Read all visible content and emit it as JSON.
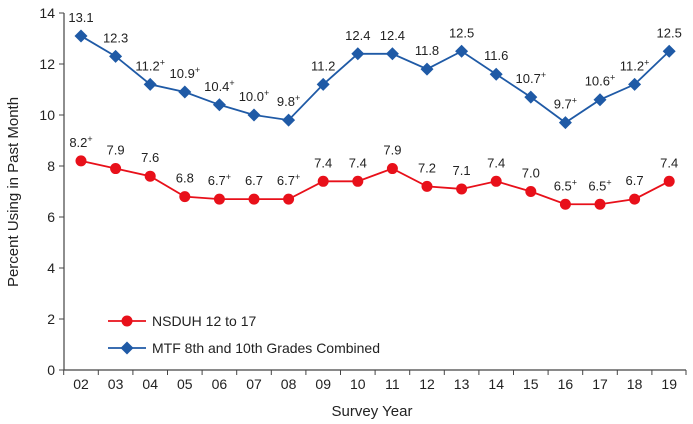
{
  "chart_data": {
    "type": "line",
    "title": "",
    "xlabel": "Survey Year",
    "ylabel": "Percent Using in Past Month",
    "ylim": [
      0,
      14
    ],
    "yticks": [
      0,
      2,
      4,
      6,
      8,
      10,
      12,
      14
    ],
    "grid": false,
    "legend_placement": "bottom-left",
    "categories": [
      "02",
      "03",
      "04",
      "05",
      "06",
      "07",
      "08",
      "09",
      "10",
      "11",
      "12",
      "13",
      "14",
      "15",
      "16",
      "17",
      "18",
      "19"
    ],
    "series": [
      {
        "name": "NSDUH 12 to 17",
        "color": "#e8101a",
        "marker": "circle",
        "values": [
          8.2,
          7.9,
          7.6,
          6.8,
          6.7,
          6.7,
          6.7,
          7.4,
          7.4,
          7.9,
          7.2,
          7.1,
          7.4,
          7.0,
          6.5,
          6.5,
          6.7,
          7.4
        ],
        "labels": [
          "8.2",
          "7.9",
          "7.6",
          "6.8",
          "6.7",
          "6.7",
          "6.7",
          "7.4",
          "7.4",
          "7.9",
          "7.2",
          "7.1",
          "7.4",
          "7.0",
          "6.5",
          "6.5",
          "6.7",
          "7.4"
        ],
        "significant": [
          true,
          false,
          false,
          false,
          true,
          false,
          true,
          false,
          false,
          false,
          false,
          false,
          false,
          false,
          true,
          true,
          false,
          false
        ]
      },
      {
        "name": "MTF 8th and 10th Grades Combined",
        "color": "#1f5aa6",
        "marker": "diamond",
        "values": [
          13.1,
          12.3,
          11.2,
          10.9,
          10.4,
          10.0,
          9.8,
          11.2,
          12.4,
          12.4,
          11.8,
          12.5,
          11.6,
          10.7,
          9.7,
          10.6,
          11.2,
          12.5
        ],
        "labels": [
          "13.1",
          "12.3",
          "11.2",
          "10.9",
          "10.4",
          "10.0",
          "9.8",
          "11.2",
          "12.4",
          "12.4",
          "11.8",
          "12.5",
          "11.6",
          "10.7",
          "9.7",
          "10.6",
          "11.2",
          "12.5"
        ],
        "significant": [
          false,
          false,
          true,
          true,
          true,
          true,
          true,
          false,
          false,
          false,
          false,
          false,
          false,
          true,
          true,
          true,
          true,
          false
        ]
      }
    ],
    "significance_marker": "+"
  }
}
